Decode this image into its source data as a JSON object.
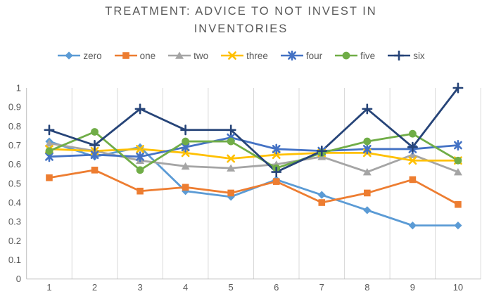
{
  "chart_data": {
    "type": "line",
    "title": "TREATMENT: ADVICE TO NOT INVEST IN INVENTORIES",
    "xlabel": "",
    "ylabel": "",
    "categories": [
      "1",
      "2",
      "3",
      "4",
      "5",
      "6",
      "7",
      "8",
      "9",
      "10"
    ],
    "y_ticks": [
      "1",
      "0.9",
      "0.8",
      "0.7",
      "0.6",
      "0.5",
      "0.4",
      "0.3",
      "0.2",
      "0.1",
      "0"
    ],
    "ylim": [
      0,
      1
    ],
    "grid": "vertical-only",
    "legend_position": "top",
    "colors": {
      "title_text": "#595959",
      "axis_text": "#595959",
      "gridline": "#D9D9D9",
      "axis_line": "#BFBFBF"
    },
    "series": [
      {
        "name": "zero",
        "color": "#5B9BD5",
        "marker": "diamond",
        "values": [
          0.72,
          0.64,
          0.69,
          0.46,
          0.43,
          0.52,
          0.44,
          0.36,
          0.28,
          0.28
        ]
      },
      {
        "name": "one",
        "color": "#ED7D31",
        "marker": "square",
        "values": [
          0.53,
          0.57,
          0.46,
          0.48,
          0.45,
          0.51,
          0.4,
          0.45,
          0.52,
          0.39
        ]
      },
      {
        "name": "two",
        "color": "#A5A5A5",
        "marker": "triangle",
        "values": [
          0.71,
          0.67,
          0.62,
          0.59,
          0.58,
          0.6,
          0.64,
          0.56,
          0.65,
          0.56
        ]
      },
      {
        "name": "three",
        "color": "#FFC000",
        "marker": "x",
        "values": [
          0.68,
          0.67,
          0.68,
          0.66,
          0.63,
          0.65,
          0.66,
          0.66,
          0.62,
          0.62
        ]
      },
      {
        "name": "four",
        "color": "#4472C4",
        "marker": "asterisk",
        "values": [
          0.64,
          0.65,
          0.64,
          0.69,
          0.74,
          0.68,
          0.67,
          0.68,
          0.68,
          0.7
        ]
      },
      {
        "name": "five",
        "color": "#70AD47",
        "marker": "circle",
        "values": [
          0.67,
          0.77,
          0.57,
          0.72,
          0.72,
          0.58,
          0.66,
          0.72,
          0.76,
          0.62
        ]
      },
      {
        "name": "six",
        "color": "#264478",
        "marker": "plus",
        "values": [
          0.78,
          0.7,
          0.89,
          0.78,
          0.78,
          0.56,
          0.67,
          0.89,
          0.69,
          1.0
        ]
      }
    ]
  }
}
